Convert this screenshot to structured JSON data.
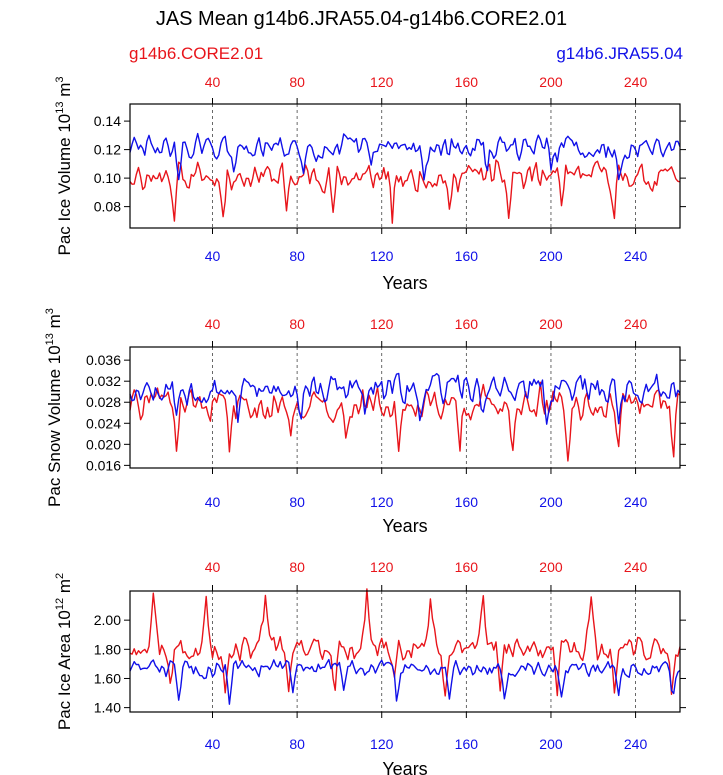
{
  "title": "JAS Mean g14b6.JRA55.04-g14b6.CORE2.01",
  "legend": {
    "red": "g14b6.CORE2.01",
    "blue": "g14b6.JRA55.04"
  },
  "colors": {
    "red": "#e8151b",
    "blue": "#1010e8",
    "grid": "#444444"
  },
  "chart_data": [
    {
      "type": "line",
      "ylabel": "Pac Ice Volume 10^13 m^3",
      "ylabel_base": "Pac Ice Volume 10",
      "ylabel_sup1": "13",
      "ylabel_mid": " m",
      "ylabel_sup2": "3",
      "xlabel": "Years",
      "xlim": [
        1,
        261
      ],
      "ylim": [
        0.065,
        0.152
      ],
      "yticks": [
        0.08,
        0.1,
        0.12,
        0.14
      ],
      "ytick_labels": [
        "0.08",
        "0.10",
        "0.12",
        "0.14"
      ],
      "xticks": [
        40,
        80,
        120,
        160,
        200,
        240
      ],
      "series": [
        {
          "name": "g14b6.CORE2.01",
          "color": "red",
          "mean": 0.101,
          "amp": 0.011,
          "dip": 0.03,
          "seed": 11,
          "dips": [
            22,
            45,
            75,
            97,
            125,
            152,
            180,
            205,
            230
          ]
        },
        {
          "name": "g14b6.JRA55.04",
          "color": "blue",
          "mean": 0.121,
          "amp": 0.01,
          "dip": 0.018,
          "seed": 29,
          "dips": [
            24,
            50,
            83,
            115,
            140,
            170,
            200,
            232
          ]
        }
      ]
    },
    {
      "type": "line",
      "ylabel": "Pac Snow Volume 10^13 m^3",
      "ylabel_base": "Pac Snow Volume 10",
      "ylabel_sup1": "13",
      "ylabel_mid": " m",
      "ylabel_sup2": "3",
      "xlabel": "Years",
      "xlim": [
        1,
        261
      ],
      "ylim": [
        0.0155,
        0.0385
      ],
      "yticks": [
        0.016,
        0.02,
        0.024,
        0.028,
        0.032,
        0.036
      ],
      "ytick_labels": [
        "0.016",
        "0.020",
        "0.024",
        "0.028",
        "0.032",
        "0.036"
      ],
      "xticks": [
        40,
        80,
        120,
        160,
        200,
        240
      ],
      "series": [
        {
          "name": "g14b6.CORE2.01",
          "color": "red",
          "mean": 0.0275,
          "amp": 0.0035,
          "dip": 0.009,
          "seed": 41,
          "dips": [
            23,
            48,
            77,
            103,
            128,
            157,
            182,
            208,
            232,
            258
          ]
        },
        {
          "name": "g14b6.JRA55.04",
          "color": "blue",
          "mean": 0.0305,
          "amp": 0.0032,
          "dip": 0.006,
          "seed": 53,
          "dips": [
            23,
            52,
            82,
            112,
            138,
            168,
            198,
            232
          ]
        }
      ]
    },
    {
      "type": "line",
      "ylabel": "Pac Ice Area 10^12 m^2",
      "ylabel_base": "Pac Ice Area 10",
      "ylabel_sup1": "12",
      "ylabel_mid": " m",
      "ylabel_sup2": "2",
      "xlabel": "Years",
      "xlim": [
        1,
        261
      ],
      "ylim": [
        1.37,
        2.2
      ],
      "yticks": [
        1.4,
        1.6,
        1.8,
        2.0
      ],
      "ytick_labels": [
        "1.40",
        "1.60",
        "1.80",
        "2.00"
      ],
      "xticks": [
        40,
        80,
        120,
        160,
        200,
        240
      ],
      "series": [
        {
          "name": "g14b6.CORE2.01",
          "color": "red",
          "mean": 1.8,
          "amp": 0.09,
          "dip": 0.3,
          "seed": 67,
          "dips": [
            20,
            46,
            76,
            98,
            126,
            150,
            176,
            203,
            230,
            257
          ],
          "peaks": [
            12,
            37,
            65,
            113,
            143,
            168,
            219
          ]
        },
        {
          "name": "g14b6.JRA55.04",
          "color": "blue",
          "mean": 1.67,
          "amp": 0.07,
          "dip": 0.2,
          "seed": 83,
          "dips": [
            24,
            48,
            78,
            102,
            127,
            152,
            178,
            205,
            232,
            258
          ]
        }
      ]
    }
  ]
}
